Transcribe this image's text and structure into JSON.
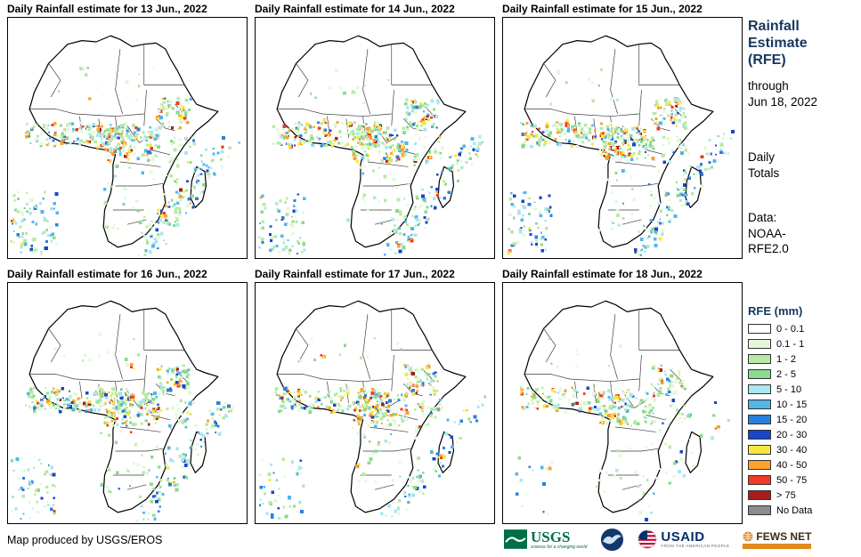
{
  "panels": [
    {
      "title": "Daily Rainfall estimate for 13 Jun., 2022"
    },
    {
      "title": "Daily Rainfall estimate for 14 Jun., 2022"
    },
    {
      "title": "Daily Rainfall estimate for 15 Jun., 2022"
    },
    {
      "title": "Daily Rainfall estimate for 16 Jun., 2022"
    },
    {
      "title": "Daily Rainfall estimate for 17 Jun., 2022"
    },
    {
      "title": "Daily Rainfall estimate for 18 Jun., 2022"
    }
  ],
  "sidebar": {
    "title": "Rainfall\nEstimate\n(RFE)",
    "through": "through\nJun 18, 2022",
    "totals": "Daily\nTotals",
    "data_source": "Data:\nNOAA-\nRFE2.0",
    "accent_color": "#17375e"
  },
  "legend": {
    "title": "RFE (mm)",
    "items": [
      {
        "label": "0 - 0.1",
        "color": "#ffffff"
      },
      {
        "label": "0.1 - 1",
        "color": "#e3f8d8"
      },
      {
        "label": "1 - 2",
        "color": "#b9e9a5"
      },
      {
        "label": "2 - 5",
        "color": "#8ada8f"
      },
      {
        "label": "5 - 10",
        "color": "#a9e6ef"
      },
      {
        "label": "10 - 15",
        "color": "#55b4ea"
      },
      {
        "label": "15 - 20",
        "color": "#2b7fdc"
      },
      {
        "label": "20 - 30",
        "color": "#1746c8"
      },
      {
        "label": "30 - 40",
        "color": "#f8e83a"
      },
      {
        "label": "40 - 50",
        "color": "#fba32c"
      },
      {
        "label": "50 - 75",
        "color": "#ef3b24"
      },
      {
        "label": "> 75",
        "color": "#a81d1d"
      },
      {
        "label": "No Data",
        "color": "#8c8c8c"
      }
    ]
  },
  "footer": {
    "credit": "Map produced by USGS/EROS"
  },
  "logos": {
    "usgs": {
      "label": "USGS",
      "tagline": "science for a changing world"
    },
    "usaid": {
      "label": "USAID",
      "tagline": "FROM THE AMERICAN PEOPLE"
    },
    "fewsnet": {
      "label": "FEWS NET"
    }
  }
}
